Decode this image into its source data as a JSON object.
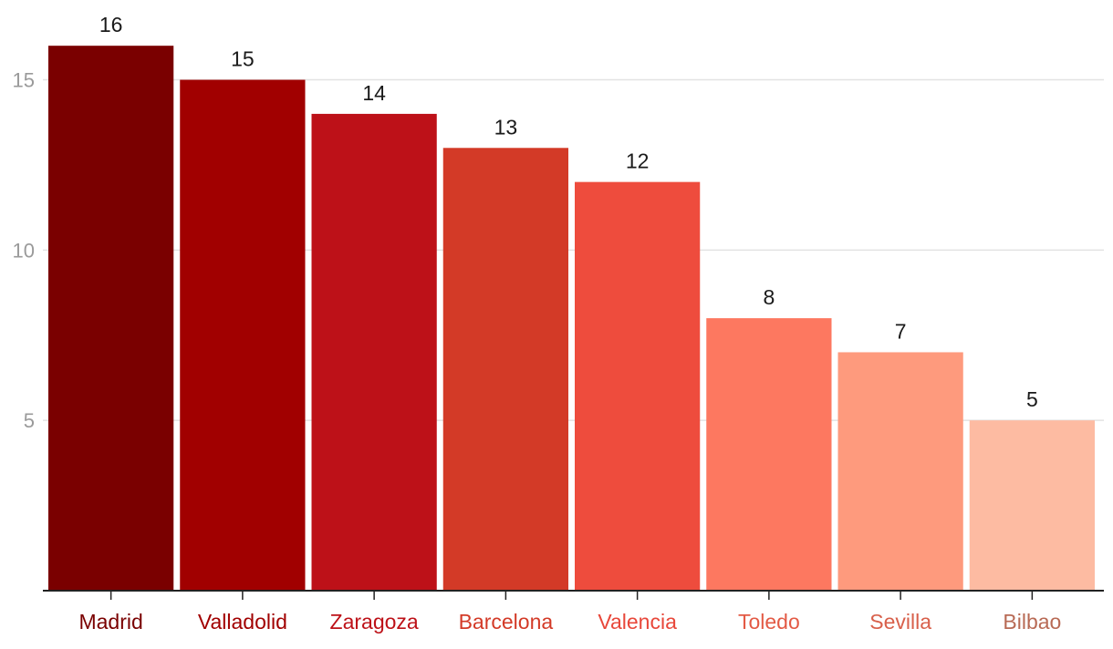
{
  "chart_data": {
    "type": "bar",
    "title": "",
    "xlabel": "",
    "ylabel": "",
    "categories": [
      "Madrid",
      "Valladolid",
      "Zaragoza",
      "Barcelona",
      "Valencia",
      "Toledo",
      "Sevilla",
      "Bilbao"
    ],
    "values": [
      16,
      15,
      14,
      13,
      12,
      8,
      7,
      5
    ],
    "colors": [
      "#7a0000",
      "#a10000",
      "#bd1118",
      "#d33a27",
      "#ee4c3d",
      "#fd7860",
      "#fe9a7d",
      "#fdbba2"
    ],
    "label_colors": [
      "#7a0000",
      "#a10000",
      "#bd1118",
      "#d33a27",
      "#e8473a",
      "#e35a45",
      "#d8604b",
      "#b86a55"
    ],
    "ylim": [
      0,
      16.5
    ],
    "yticks": [
      5,
      10,
      15
    ],
    "grid": true,
    "legend": "none"
  }
}
